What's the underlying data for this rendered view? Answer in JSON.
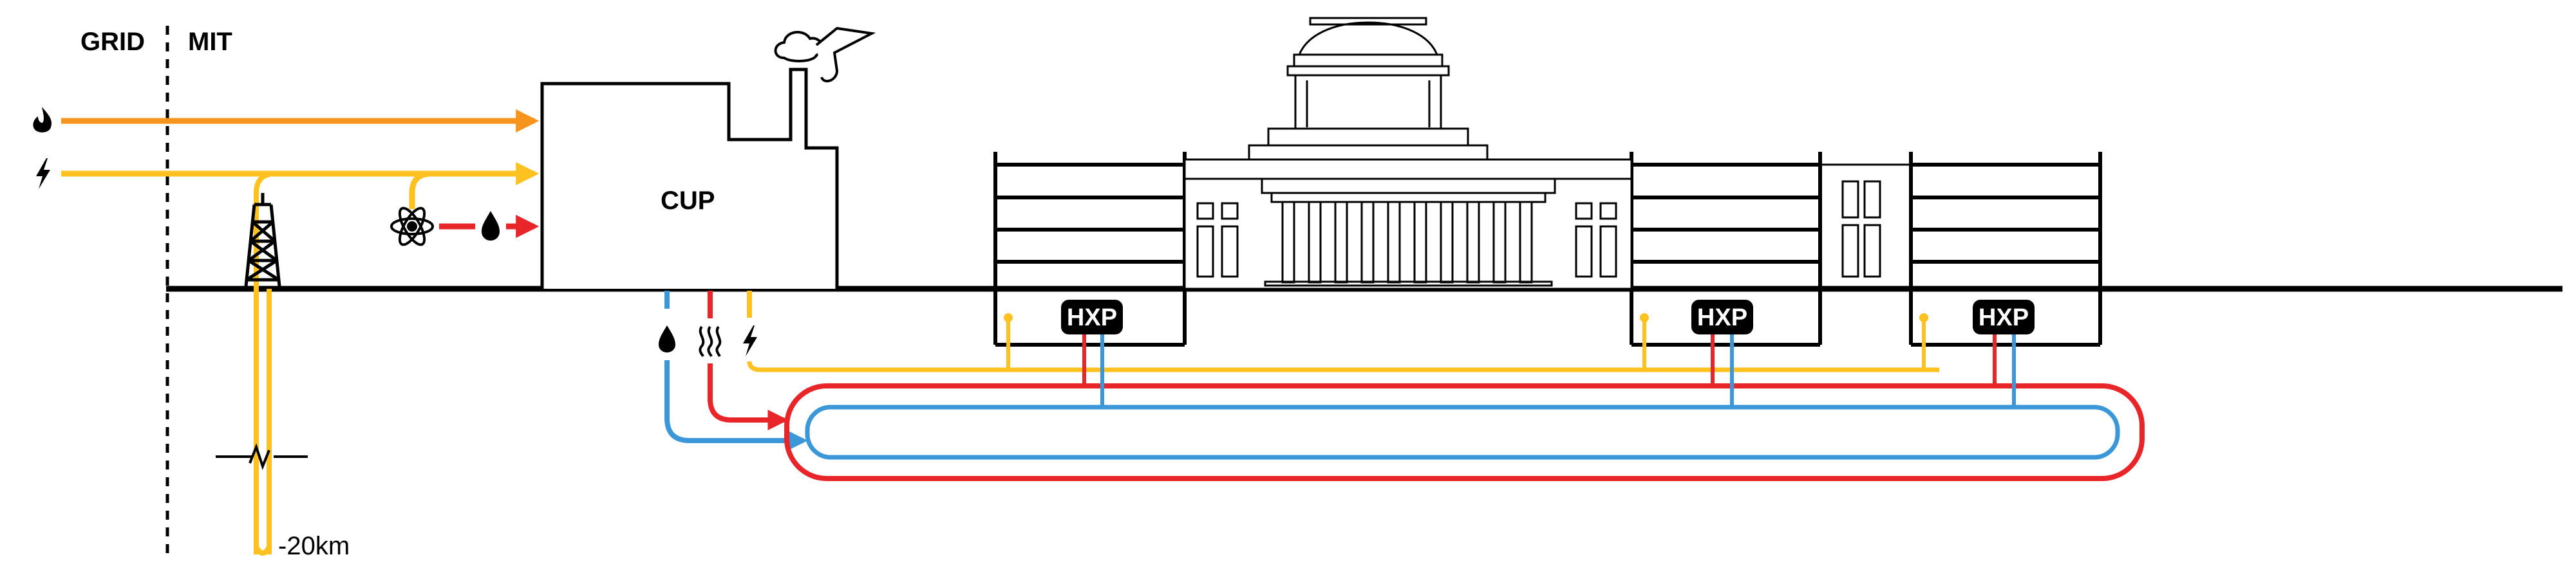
{
  "labels": {
    "grid": "GRID",
    "mit": "MIT",
    "cup": "CUP",
    "depth": "-20km"
  },
  "hxp_units": [
    {
      "label": "HXP"
    },
    {
      "label": "HXP"
    },
    {
      "label": "HXP"
    }
  ],
  "icons": {
    "inputs": [
      "flame-icon",
      "lightning-icon",
      "atom-icon",
      "water-drop-icon"
    ],
    "outputs": [
      "water-drop-icon",
      "heat-waves-icon",
      "lightning-icon"
    ],
    "structures": [
      "geothermal-derrick-icon",
      "smokestack-icon",
      "great-dome-icon"
    ]
  },
  "colors": {
    "gas": "#f7941d",
    "electric": "#fdc21f",
    "hot": "#e8262a",
    "cold": "#3b97d8",
    "structure": "#000000"
  }
}
